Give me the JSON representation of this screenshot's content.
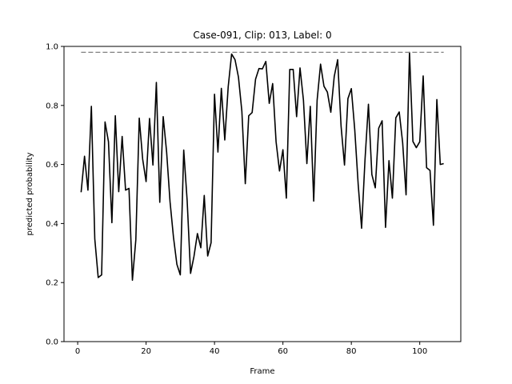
{
  "chart_data": {
    "type": "line",
    "title": "Case-091, Clip: 013, Label: 0",
    "xlabel": "Frame",
    "ylabel": "predicted probability",
    "xlim": [
      -4,
      112
    ],
    "ylim": [
      0.0,
      1.0
    ],
    "xticks": [
      0,
      20,
      40,
      60,
      80,
      100
    ],
    "xtick_labels": [
      "0",
      "20",
      "40",
      "60",
      "80",
      "100"
    ],
    "yticks": [
      0.0,
      0.2,
      0.4,
      0.6,
      0.8,
      1.0
    ],
    "ytick_labels": [
      "0.0",
      "0.2",
      "0.4",
      "0.6",
      "0.8",
      "1.0"
    ],
    "grid": false,
    "series": [
      {
        "style": "solid",
        "color": "#000000",
        "x": [
          1,
          2,
          3,
          4,
          5,
          6,
          7,
          8,
          9,
          10,
          11,
          12,
          13,
          14,
          15,
          16,
          17,
          18,
          19,
          20,
          21,
          22,
          23,
          24,
          25,
          26,
          27,
          28,
          29,
          30,
          31,
          32,
          33,
          34,
          35,
          36,
          37,
          38,
          39,
          40,
          41,
          42,
          43,
          44,
          45,
          46,
          47,
          48,
          49,
          50,
          51,
          52,
          53,
          54,
          55,
          56,
          57,
          58,
          59,
          60,
          61,
          62,
          63,
          64,
          65,
          66,
          67,
          68,
          69,
          70,
          71,
          72,
          73,
          74,
          75,
          76,
          77,
          78,
          79,
          80,
          81,
          82,
          83,
          84,
          85,
          86,
          87,
          88,
          89,
          90,
          91,
          92,
          93,
          94,
          95,
          96,
          97,
          98,
          99,
          100,
          101,
          102,
          103,
          104,
          105,
          106,
          107
        ],
        "y": [
          0.506,
          0.628,
          0.513,
          0.797,
          0.348,
          0.217,
          0.226,
          0.744,
          0.677,
          0.403,
          0.765,
          0.508,
          0.695,
          0.513,
          0.519,
          0.208,
          0.345,
          0.757,
          0.618,
          0.542,
          0.756,
          0.598,
          0.878,
          0.472,
          0.762,
          0.642,
          0.474,
          0.354,
          0.262,
          0.226,
          0.649,
          0.478,
          0.231,
          0.289,
          0.366,
          0.318,
          0.495,
          0.29,
          0.335,
          0.838,
          0.642,
          0.858,
          0.683,
          0.863,
          0.974,
          0.955,
          0.896,
          0.78,
          0.535,
          0.765,
          0.776,
          0.889,
          0.925,
          0.924,
          0.949,
          0.807,
          0.874,
          0.677,
          0.578,
          0.65,
          0.486,
          0.922,
          0.922,
          0.762,
          0.927,
          0.818,
          0.603,
          0.797,
          0.476,
          0.818,
          0.94,
          0.865,
          0.845,
          0.777,
          0.898,
          0.955,
          0.73,
          0.598,
          0.823,
          0.857,
          0.717,
          0.533,
          0.384,
          0.617,
          0.804,
          0.566,
          0.521,
          0.723,
          0.748,
          0.387,
          0.613,
          0.486,
          0.758,
          0.778,
          0.674,
          0.497,
          0.98,
          0.678,
          0.657,
          0.677,
          0.9,
          0.589,
          0.58,
          0.394,
          0.82,
          0.6,
          0.603
        ]
      },
      {
        "style": "dashed",
        "color": "#808080",
        "x": [
          1,
          107
        ],
        "y": [
          0.98,
          0.98
        ]
      }
    ]
  }
}
